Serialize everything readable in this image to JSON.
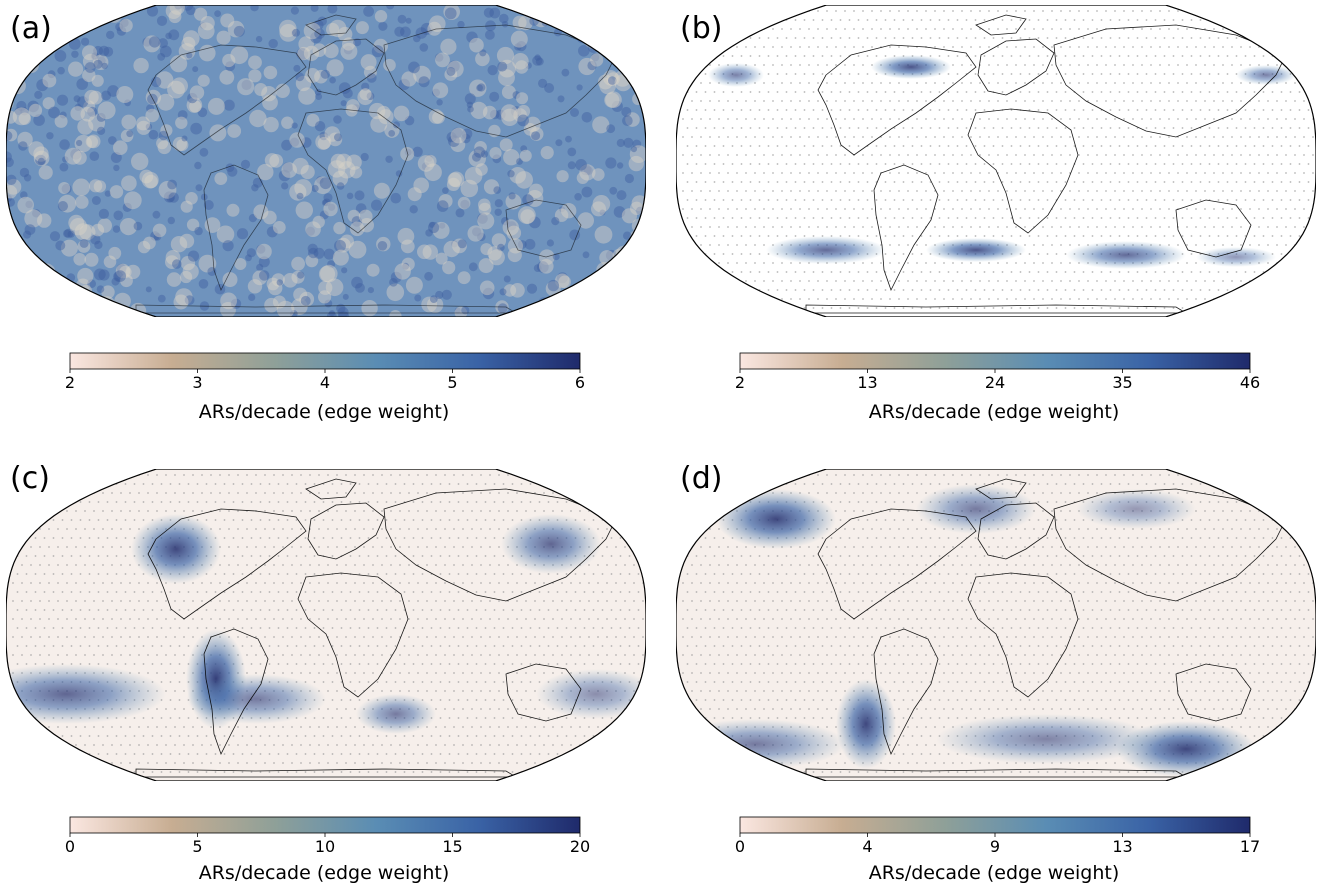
{
  "colors": {
    "cmap": [
      "#fbe7e1",
      "#c7ad92",
      "#8fa098",
      "#5a8db4",
      "#3a63a6",
      "#1f2a6b"
    ],
    "land_outline": "#000000",
    "dots": "#9a9a9a"
  },
  "panels": [
    {
      "label": "(a)",
      "cbar_label": "ARs/decade (edge weight)",
      "ticks": [
        "2",
        "3",
        "4",
        "5",
        "6"
      ],
      "pattern": "uniform"
    },
    {
      "label": "(b)",
      "cbar_label": "ARs/decade (edge weight)",
      "ticks": [
        "2",
        "13",
        "24",
        "35",
        "46"
      ],
      "pattern": "sparse"
    },
    {
      "label": "(c)",
      "cbar_label": "ARs/decade (edge weight)",
      "ticks": [
        "0",
        "5",
        "10",
        "15",
        "20"
      ],
      "pattern": "blobs_c"
    },
    {
      "label": "(d)",
      "cbar_label": "ARs/decade (edge weight)",
      "ticks": [
        "0",
        "4",
        "9",
        "13",
        "17"
      ],
      "pattern": "blobs_d"
    }
  ]
}
